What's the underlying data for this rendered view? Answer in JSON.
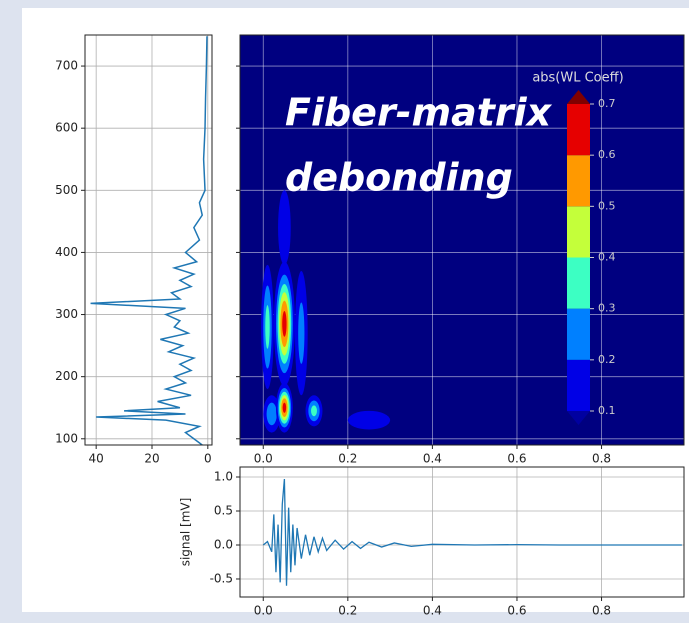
{
  "chart_data": [
    {
      "type": "hline",
      "color": "#1f77b4",
      "grid": true,
      "xlim": [
        44,
        -1.5
      ],
      "xticks": [
        40,
        20,
        0
      ],
      "ylim": [
        90,
        750
      ],
      "yticks": [
        100,
        200,
        300,
        400,
        500,
        600,
        700
      ],
      "y": [
        90,
        100,
        110,
        120,
        130,
        135,
        140,
        145,
        150,
        160,
        170,
        180,
        190,
        200,
        210,
        220,
        230,
        240,
        250,
        260,
        270,
        280,
        290,
        300,
        310,
        318,
        325,
        335,
        345,
        355,
        365,
        375,
        385,
        400,
        420,
        440,
        460,
        480,
        500,
        550,
        600,
        650,
        700,
        748
      ],
      "values": [
        2,
        5,
        8,
        3,
        15,
        40,
        8,
        30,
        10,
        18,
        6,
        15,
        8,
        12,
        6,
        10,
        5,
        14,
        9,
        17,
        7,
        12,
        10,
        15,
        8,
        42,
        10,
        13,
        6,
        10,
        5,
        12,
        4,
        8,
        3,
        5,
        2,
        3,
        1,
        1.5,
        1,
        0.8,
        0.5,
        0.3
      ]
    },
    {
      "type": "contour",
      "background": "#000080",
      "grid": true,
      "xlim": [
        -0.055,
        0.995
      ],
      "xticks": [
        {
          "value": 0,
          "label": "0.0"
        },
        0.2,
        0.4,
        0.6,
        0.8
      ],
      "ylim": [
        90,
        750
      ],
      "yticks": [
        100,
        200,
        300,
        400,
        500,
        600,
        700
      ],
      "annotation": [
        "Fiber-matrix",
        "debonding"
      ],
      "colorbar": {
        "label": "abs(WL Coeff)",
        "ticks": [
          0.1,
          0.2,
          0.3,
          0.4,
          0.5,
          0.6,
          0.7
        ],
        "colors": [
          "#0000e6",
          "#0080ff",
          "#3cffc3",
          "#c4ff3a",
          "#ff9900",
          "#e60000"
        ],
        "under": "#0000a0",
        "over": "#800000"
      },
      "blobs": [
        {
          "x": 0.01,
          "y": 280,
          "dx": 0.03,
          "dy": 200,
          "value": 0.35
        },
        {
          "x": 0.09,
          "y": 270,
          "dx": 0.03,
          "dy": 200,
          "value": 0.25
        },
        {
          "x": 0.05,
          "y": 440,
          "dx": 0.03,
          "dy": 120,
          "value": 0.15
        },
        {
          "x": 0.25,
          "y": 130,
          "dx": 0.1,
          "dy": 30,
          "value": 0.15
        },
        {
          "x": 0.02,
          "y": 140,
          "dx": 0.04,
          "dy": 60,
          "value": 0.3
        },
        {
          "x": 0.12,
          "y": 145,
          "dx": 0.04,
          "dy": 50,
          "value": 0.35
        },
        {
          "x": 0.05,
          "y": 285,
          "dx": 0.05,
          "dy": 200,
          "value": 0.65
        },
        {
          "x": 0.05,
          "y": 150,
          "dx": 0.04,
          "dy": 80,
          "value": 0.65
        }
      ]
    },
    {
      "type": "line",
      "color": "#1f77b4",
      "grid": true,
      "ylabel": "signal [mV]",
      "xlim": [
        -0.055,
        0.995
      ],
      "xticks": [
        {
          "value": 0,
          "label": "0.0"
        },
        0.2,
        0.4,
        0.6,
        0.8
      ],
      "ylim": [
        -0.765,
        1.147
      ],
      "yticks": [
        -0.5,
        {
          "value": 0,
          "label": "0.0"
        },
        0.5,
        {
          "value": 1,
          "label": "1.0"
        }
      ],
      "x": [
        0,
        0.01,
        0.02,
        0.025,
        0.03,
        0.035,
        0.04,
        0.045,
        0.05,
        0.055,
        0.06,
        0.065,
        0.07,
        0.075,
        0.08,
        0.09,
        0.1,
        0.11,
        0.12,
        0.13,
        0.14,
        0.15,
        0.17,
        0.19,
        0.21,
        0.23,
        0.25,
        0.28,
        0.31,
        0.35,
        0.4,
        0.5,
        0.6,
        0.7,
        0.8,
        0.9,
        0.99
      ],
      "values": [
        0,
        0.05,
        -0.1,
        0.45,
        -0.4,
        0.3,
        -0.55,
        0.6,
        0.97,
        -0.6,
        0.55,
        -0.4,
        0.3,
        -0.3,
        0.25,
        -0.2,
        0.15,
        -0.15,
        0.12,
        -0.1,
        0.1,
        -0.08,
        0.07,
        -0.06,
        0.05,
        -0.05,
        0.04,
        -0.03,
        0.03,
        -0.02,
        0.01,
        0,
        0.005,
        0,
        0,
        0,
        0
      ]
    }
  ]
}
